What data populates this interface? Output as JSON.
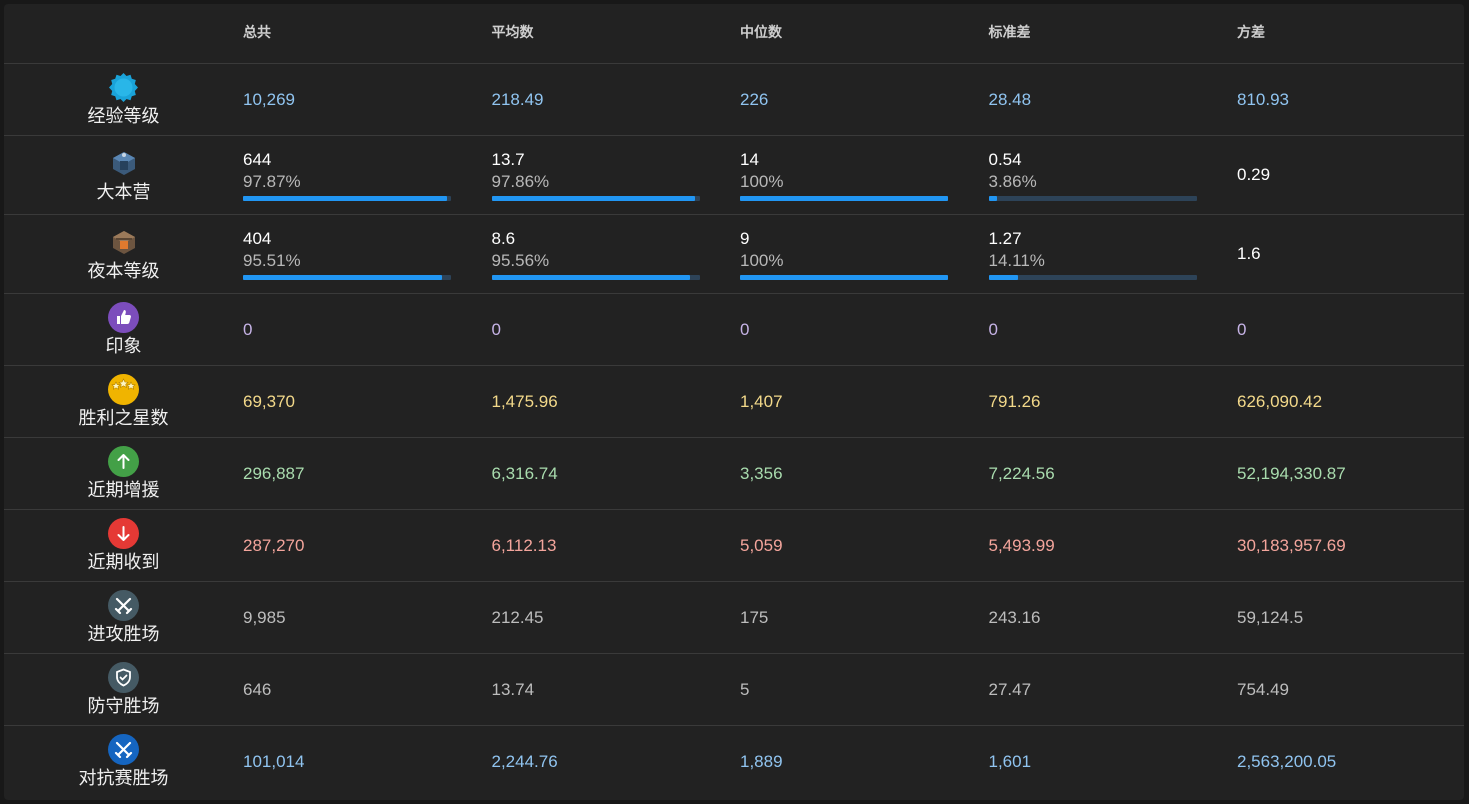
{
  "headers": [
    "总共",
    "平均数",
    "中位数",
    "标准差",
    "方差"
  ],
  "rows": [
    {
      "label": "经验等级",
      "icon": "xp-badge-icon",
      "color": "#90c4f0",
      "icon_bg": "#1aa3d9",
      "values": [
        "10,269",
        "218.49",
        "226",
        "28.48",
        "810.93"
      ]
    },
    {
      "label": "大本营",
      "icon": "town-hall-icon",
      "type": "progress",
      "values": [
        "644",
        "13.7",
        "14",
        "0.54",
        "0.29"
      ],
      "pcts": [
        "97.87%",
        "97.86%",
        "100%",
        "3.86%"
      ],
      "fractions": [
        0.9787,
        0.9786,
        1.0,
        0.0386
      ]
    },
    {
      "label": "夜本等级",
      "icon": "builder-hall-icon",
      "type": "progress",
      "values": [
        "404",
        "8.6",
        "9",
        "1.27",
        "1.6"
      ],
      "pcts": [
        "95.51%",
        "95.56%",
        "100%",
        "14.11%"
      ],
      "fractions": [
        0.9551,
        0.9556,
        1.0,
        0.1411
      ]
    },
    {
      "label": "印象",
      "icon": "thumbs-up-icon",
      "color": "#c6b3e6",
      "icon_bg": "#7c4dbc",
      "values": [
        "0",
        "0",
        "0",
        "0",
        "0"
      ]
    },
    {
      "label": "胜利之星数",
      "icon": "stars-icon",
      "color": "#f3d98a",
      "icon_bg": "#f0b400",
      "values": [
        "69,370",
        "1,475.96",
        "1,407",
        "791.26",
        "626,090.42"
      ]
    },
    {
      "label": "近期增援",
      "icon": "arrow-up-icon",
      "color": "#a9dcae",
      "icon_bg": "#43a047",
      "values": [
        "296,887",
        "6,316.74",
        "3,356",
        "7,224.56",
        "52,194,330.87"
      ]
    },
    {
      "label": "近期收到",
      "icon": "arrow-down-icon",
      "color": "#f4a59c",
      "icon_bg": "#e53935",
      "values": [
        "287,270",
        "6,112.13",
        "5,059",
        "5,493.99",
        "30,183,957.69"
      ]
    },
    {
      "label": "进攻胜场",
      "icon": "crossed-swords-icon",
      "color": "#bdbdbd",
      "icon_bg": "#455a64",
      "values": [
        "9,985",
        "212.45",
        "175",
        "243.16",
        "59,124.5"
      ]
    },
    {
      "label": "防守胜场",
      "icon": "shield-check-icon",
      "color": "#bdbdbd",
      "icon_bg": "#455a64",
      "values": [
        "646",
        "13.74",
        "5",
        "27.47",
        "754.49"
      ]
    },
    {
      "label": "对抗赛胜场",
      "icon": "versus-swords-icon",
      "color": "#90c4f0",
      "icon_bg": "#1565c0",
      "values": [
        "101,014",
        "2,244.76",
        "1,889",
        "1,601",
        "2,563,200.05"
      ]
    }
  ]
}
